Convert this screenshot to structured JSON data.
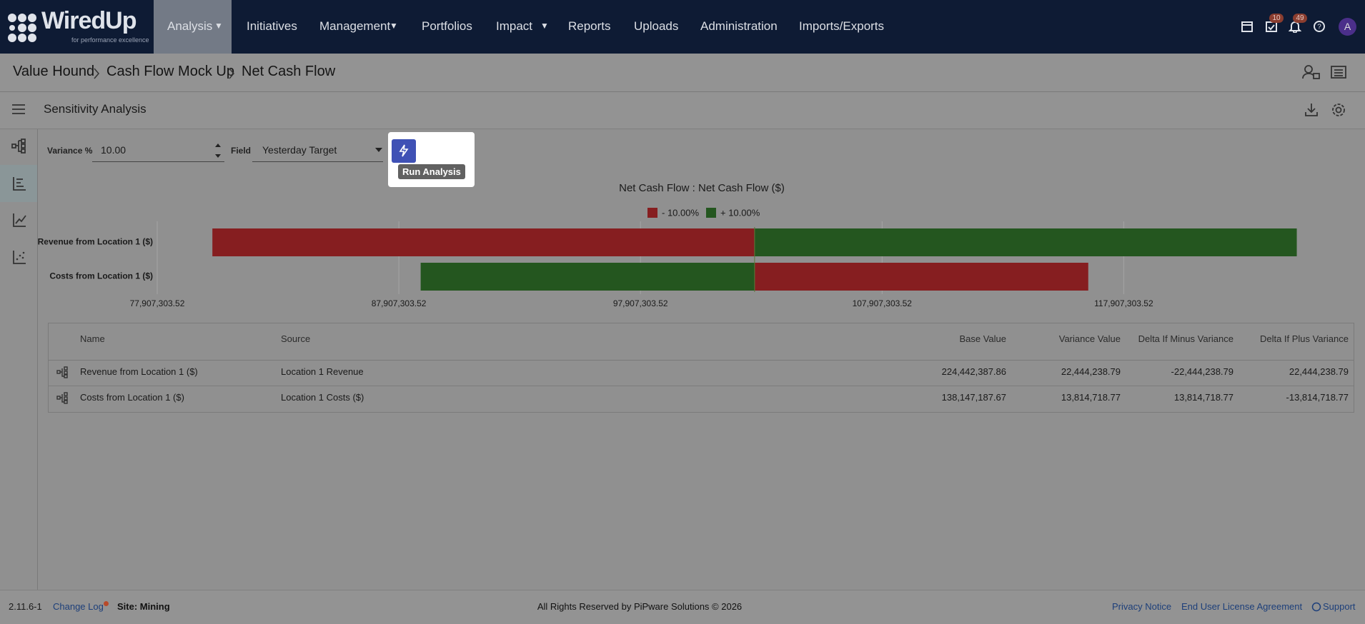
{
  "nav": {
    "logo": "WiredUp",
    "tagline": "for performance excellence",
    "items": [
      "Analysis",
      "Initiatives",
      "Management",
      "Portfolios",
      "Impact",
      "Reports",
      "Uploads",
      "Administration",
      "Imports/Exports"
    ],
    "badges": [
      "10",
      "49"
    ],
    "avatar": "A"
  },
  "breadcrumb": [
    "Value Hound",
    "Cash Flow Mock Up",
    "Net Cash Flow"
  ],
  "section_title": "Sensitivity Analysis",
  "controls": {
    "variance_label": "Variance %",
    "variance_value": "10.00",
    "field_label": "Field",
    "field_value": "Yesterday Target",
    "tooltip": "Run Analysis"
  },
  "chart": {
    "type": "tornado",
    "title": "Net Cash Flow : Net Cash Flow ($)",
    "base": 102630000,
    "categories": [
      "Revenue from Location 1 ($)",
      "Costs from Location 1 ($)"
    ],
    "series": [
      {
        "name": "- 10.00%",
        "color": "#861e20",
        "values": [
          80190000,
          116440000
        ]
      },
      {
        "name": "+ 10.00%",
        "color": "#24561f",
        "values": [
          125070000,
          88810000
        ]
      }
    ],
    "xlim": [
      77907303.52,
      127420000
    ],
    "xticks": [
      {
        "value": 77907303.52,
        "label": "77,907,303.52"
      },
      {
        "value": 87907303.52,
        "label": "87,907,303.52"
      },
      {
        "value": 97907303.52,
        "label": "97,907,303.52"
      },
      {
        "value": 107907303.52,
        "label": "107,907,303.52"
      },
      {
        "value": 117907303.52,
        "label": "117,907,303.52"
      }
    ],
    "grid": true
  },
  "table": {
    "columns": [
      "Name",
      "Source",
      "Base Value",
      "Variance Value",
      "Delta If Minus Variance",
      "Delta If Plus Variance"
    ],
    "rows": [
      [
        "Revenue from Location 1 ($)",
        "Location 1 Revenue",
        "224,442,387.86",
        "22,444,238.79",
        "-22,444,238.79",
        "22,444,238.79"
      ],
      [
        "Costs from Location 1 ($)",
        "Location 1 Costs ($)",
        "138,147,187.67",
        "13,814,718.77",
        "13,814,718.77",
        "-13,814,718.77"
      ]
    ]
  },
  "footer": {
    "version": "2.11.6-1",
    "changelog": "Change Log",
    "site": "Site: Mining",
    "copyright": "All Rights Reserved by PiPware Solutions © 2026",
    "links": [
      "Privacy Notice",
      "End User License Agreement",
      "Support"
    ]
  }
}
